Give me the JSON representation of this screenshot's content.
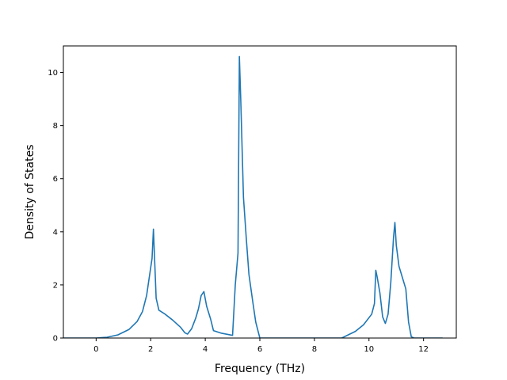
{
  "chart_data": {
    "type": "line",
    "xlabel": "Frequency (THz)",
    "ylabel": "Density of States",
    "xlim": [
      -1.2,
      13.2
    ],
    "ylim": [
      0,
      11.0
    ],
    "x_ticks": [
      0,
      2,
      4,
      6,
      8,
      10,
      12
    ],
    "y_ticks": [
      0,
      2,
      4,
      6,
      8,
      10
    ],
    "grid": false,
    "series": [
      {
        "color": "#1f77b4",
        "x": [
          -1.2,
          0.0,
          0.4,
          0.8,
          1.2,
          1.5,
          1.7,
          1.85,
          1.95,
          2.05,
          2.1,
          2.15,
          2.2,
          2.3,
          2.5,
          2.8,
          3.1,
          3.25,
          3.35,
          3.5,
          3.65,
          3.75,
          3.85,
          3.95,
          4.05,
          4.2,
          4.3,
          4.6,
          4.9,
          5.0,
          5.1,
          5.2,
          5.25,
          5.3,
          5.4,
          5.5,
          5.6,
          5.75,
          5.85,
          6.0,
          9.0,
          9.5,
          9.8,
          10.1,
          10.2,
          10.25,
          10.3,
          10.4,
          10.5,
          10.6,
          10.7,
          10.8,
          10.9,
          10.95,
          11.0,
          11.1,
          11.35,
          11.45,
          11.55,
          11.65,
          12.7
        ],
        "y": [
          0.0,
          0.0,
          0.03,
          0.12,
          0.32,
          0.62,
          1.0,
          1.6,
          2.3,
          3.0,
          4.1,
          2.8,
          1.5,
          1.05,
          0.92,
          0.68,
          0.4,
          0.2,
          0.15,
          0.35,
          0.75,
          1.1,
          1.6,
          1.75,
          1.2,
          0.7,
          0.28,
          0.18,
          0.12,
          0.1,
          2.0,
          3.2,
          10.6,
          9.0,
          5.3,
          3.8,
          2.4,
          1.3,
          0.6,
          0.0,
          0.0,
          0.25,
          0.5,
          0.9,
          1.3,
          2.55,
          2.3,
          1.7,
          0.8,
          0.55,
          0.9,
          2.1,
          3.8,
          4.35,
          3.5,
          2.7,
          1.85,
          0.6,
          0.05,
          0.0,
          0.0
        ]
      }
    ]
  }
}
